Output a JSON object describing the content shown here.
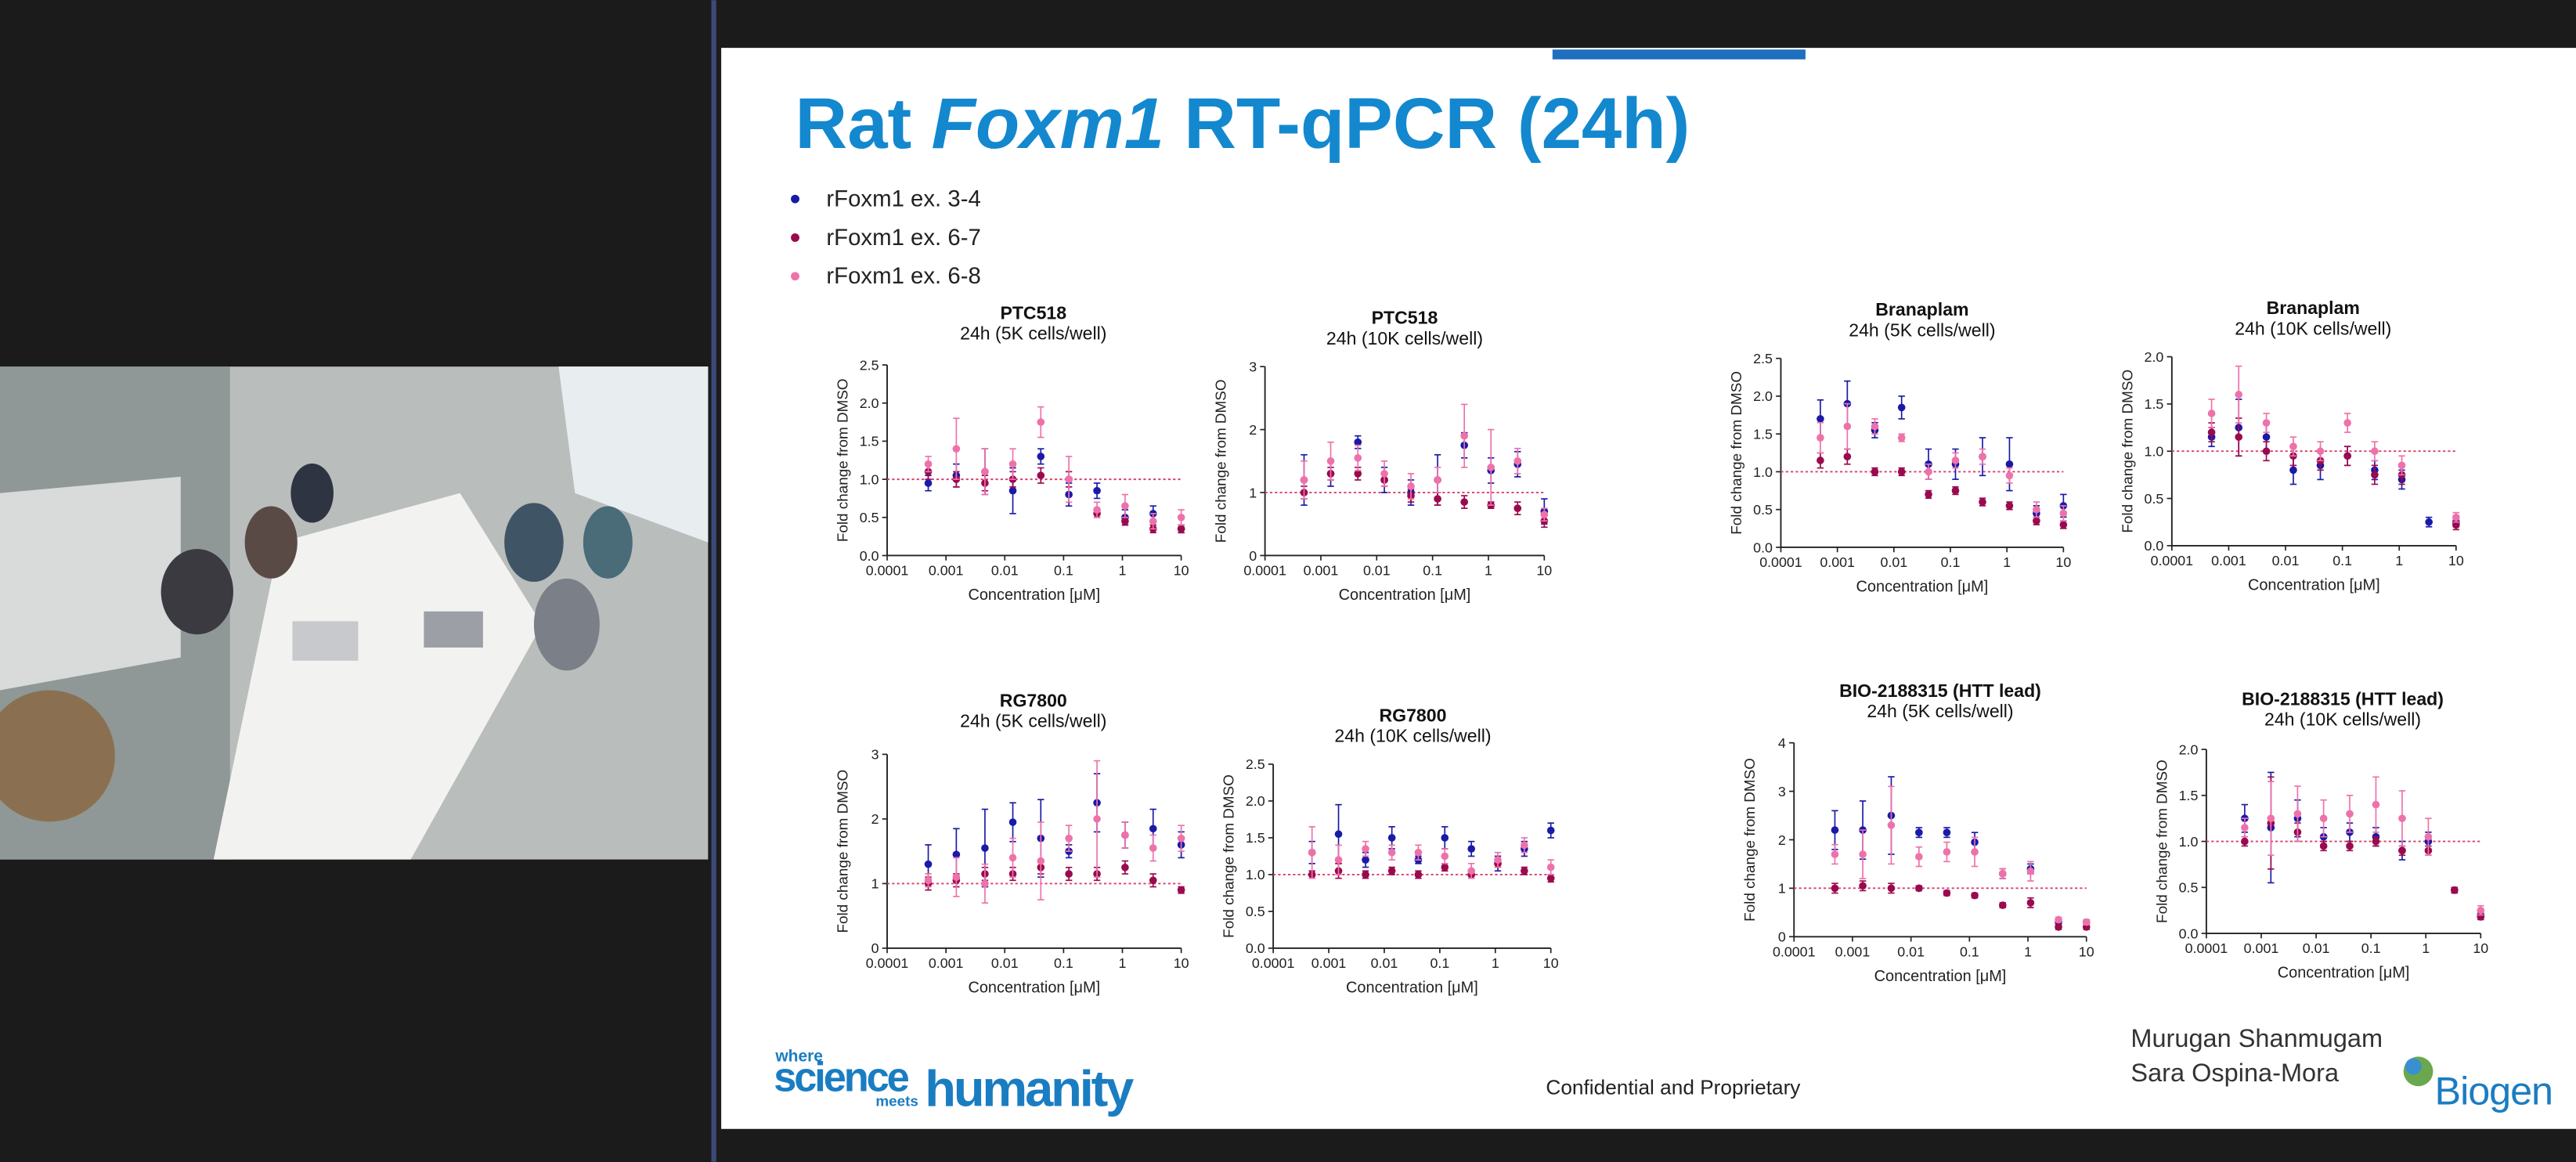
{
  "slide": {
    "title": [
      "Rat",
      "Foxm1",
      "RT-qPCR (24h)"
    ],
    "legend": [
      {
        "name": "rFoxm1 ex. 3-4",
        "color": "#1a1aa8"
      },
      {
        "name": "rFoxm1 ex. 6-7",
        "color": "#9a0a4e"
      },
      {
        "name": "rFoxm1 ex. 6-8",
        "color": "#ee72aa"
      }
    ],
    "footer": "Confidential and Proprietary",
    "authors": [
      "Murugan Shanmugam",
      "Sara Ospina-Mora"
    ],
    "logo": {
      "where": "where",
      "science": "science",
      "meets": "meets",
      "humanity": "humanity",
      "brand": "Biogen"
    }
  },
  "chart_data": [
    {
      "type": "scatter",
      "title": "PTC518",
      "subtitle": "24h (5K cells/well)",
      "xlabel": "Concentration [μM]",
      "ylabel": "Fold change from DMSO",
      "xscale": "log",
      "xlim": [
        0.0001,
        10
      ],
      "xticks": [
        0.0001,
        0.001,
        0.01,
        0.1,
        1,
        10
      ],
      "ylim": [
        0,
        2.5
      ],
      "yticks": [
        {
          "value": 0,
          "label": "0.0"
        },
        0.5,
        {
          "value": 1,
          "label": "1.0"
        },
        1.5,
        {
          "value": 2,
          "label": "2.0"
        },
        2.5
      ],
      "hline": 1,
      "x": [
        0.0005,
        0.0015,
        0.0046,
        0.0137,
        0.041,
        0.123,
        0.37,
        1.11,
        3.33,
        10
      ],
      "series": [
        {
          "values": [
            0.95,
            1.05,
            1.1,
            0.85,
            1.3,
            0.8,
            0.85,
            0.5,
            0.55,
            0.35
          ],
          "errors": [
            0.1,
            0.15,
            0.3,
            0.3,
            0.1,
            0.15,
            0.1,
            0.1,
            0.1,
            0.05
          ]
        },
        {
          "values": [
            1.1,
            1.0,
            0.95,
            1.0,
            1.05,
            1.0,
            0.55,
            0.45,
            0.35,
            0.35
          ],
          "errors": [
            0.1,
            0.1,
            0.1,
            0.1,
            0.1,
            0.1,
            0.05,
            0.05,
            0.05,
            0.05
          ]
        },
        {
          "values": [
            1.2,
            1.4,
            1.1,
            1.2,
            1.75,
            1.0,
            0.6,
            0.65,
            0.45,
            0.5
          ],
          "errors": [
            0.1,
            0.4,
            0.3,
            0.2,
            0.2,
            0.3,
            0.1,
            0.15,
            0.1,
            0.1
          ]
        }
      ]
    },
    {
      "type": "scatter",
      "title": "PTC518",
      "subtitle": "24h (10K cells/well)",
      "xlabel": "Concentration [μM]",
      "ylabel": "Fold change from DMSO",
      "xscale": "log",
      "xlim": [
        0.0001,
        10
      ],
      "xticks": [
        0.0001,
        0.001,
        0.01,
        0.1,
        1,
        10
      ],
      "ylim": [
        0,
        3
      ],
      "yticks": [
        0,
        1,
        2,
        3
      ],
      "hline": 1,
      "x": [
        0.0005,
        0.0015,
        0.0046,
        0.0137,
        0.041,
        0.123,
        0.37,
        1.11,
        3.33,
        10
      ],
      "series": [
        {
          "values": [
            1.2,
            1.3,
            1.8,
            1.2,
            1.0,
            1.2,
            1.75,
            1.35,
            1.45,
            0.7
          ],
          "errors": [
            0.4,
            0.2,
            0.1,
            0.2,
            0.2,
            0.4,
            0.2,
            0.2,
            0.2,
            0.2
          ]
        },
        {
          "values": [
            1.0,
            1.3,
            1.3,
            1.2,
            0.95,
            0.9,
            0.85,
            0.8,
            0.75,
            0.55
          ],
          "errors": [
            0.1,
            0.1,
            0.1,
            0.1,
            0.1,
            0.1,
            0.1,
            0.05,
            0.1,
            0.1
          ]
        },
        {
          "values": [
            1.2,
            1.5,
            1.55,
            1.3,
            1.1,
            1.2,
            1.9,
            1.4,
            1.5,
            0.65
          ],
          "errors": [
            0.3,
            0.3,
            0.2,
            0.2,
            0.2,
            0.2,
            0.5,
            0.6,
            0.2,
            0.1
          ]
        }
      ]
    },
    {
      "type": "scatter",
      "title": "Branaplam",
      "subtitle": "24h (5K cells/well)",
      "xlabel": "Concentration [μM]",
      "ylabel": "Fold change from DMSO",
      "xscale": "log",
      "xlim": [
        0.0001,
        10
      ],
      "xticks": [
        0.0001,
        0.001,
        0.01,
        0.1,
        1,
        10
      ],
      "ylim": [
        0,
        2.5
      ],
      "yticks": [
        {
          "value": 0,
          "label": "0.0"
        },
        0.5,
        {
          "value": 1,
          "label": "1.0"
        },
        1.5,
        {
          "value": 2,
          "label": "2.0"
        },
        2.5
      ],
      "hline": 1,
      "x": [
        0.0005,
        0.0015,
        0.0046,
        0.0137,
        0.041,
        0.123,
        0.37,
        1.11,
        3.33,
        10
      ],
      "series": [
        {
          "values": [
            1.7,
            1.9,
            1.55,
            1.85,
            1.1,
            1.1,
            1.2,
            1.1,
            0.45,
            0.55
          ],
          "errors": [
            0.25,
            0.3,
            0.1,
            0.15,
            0.2,
            0.2,
            0.25,
            0.35,
            0.1,
            0.15
          ]
        },
        {
          "values": [
            1.15,
            1.2,
            1.0,
            1.0,
            0.7,
            0.75,
            0.6,
            0.55,
            0.35,
            0.3
          ],
          "errors": [
            0.1,
            0.1,
            0.05,
            0.05,
            0.05,
            0.05,
            0.05,
            0.05,
            0.05,
            0.05
          ]
        },
        {
          "values": [
            1.45,
            1.6,
            1.6,
            1.45,
            1.0,
            1.15,
            1.2,
            0.95,
            0.5,
            0.45
          ],
          "errors": [
            0.2,
            0.3,
            0.1,
            0.05,
            0.1,
            0.1,
            0.1,
            0.1,
            0.1,
            0.1
          ]
        }
      ]
    },
    {
      "type": "scatter",
      "title": "Branaplam",
      "subtitle": "24h (10K cells/well)",
      "xlabel": "Concentration [μM]",
      "ylabel": "Fold change from DMSO",
      "xscale": "log",
      "xlim": [
        0.0001,
        10
      ],
      "xticks": [
        0.0001,
        0.001,
        0.01,
        0.1,
        1,
        10
      ],
      "ylim": [
        0,
        2
      ],
      "yticks": [
        {
          "value": 0,
          "label": "0.0"
        },
        0.5,
        {
          "value": 1,
          "label": "1.0"
        },
        1.5,
        {
          "value": 2,
          "label": "2.0"
        }
      ],
      "hline": 1,
      "x": [
        0.0005,
        0.0015,
        0.0046,
        0.0137,
        0.041,
        0.123,
        0.37,
        1.11,
        3.33,
        10
      ],
      "series": [
        {
          "values": [
            1.15,
            1.25,
            1.15,
            0.8,
            0.85,
            0.95,
            0.8,
            0.7,
            0.25,
            0.25
          ],
          "errors": [
            0.1,
            0.3,
            0.15,
            0.15,
            0.15,
            0.1,
            0.1,
            0.1,
            0.05,
            0.05
          ]
        },
        {
          "values": [
            1.2,
            1.15,
            1.0,
            0.95,
            0.9,
            0.95,
            0.75,
            0.75,
            null,
            0.22
          ],
          "errors": [
            0.1,
            0.2,
            0.1,
            0.1,
            0.1,
            0.1,
            0.1,
            0.1,
            null,
            0.05
          ]
        },
        {
          "values": [
            1.4,
            1.6,
            1.3,
            1.05,
            1.0,
            1.3,
            1.0,
            0.85,
            null,
            0.3
          ],
          "errors": [
            0.15,
            0.3,
            0.1,
            0.1,
            0.1,
            0.1,
            0.1,
            0.1,
            null,
            0.05
          ]
        }
      ]
    },
    {
      "type": "scatter",
      "title": "RG7800",
      "subtitle": "24h (5K cells/well)",
      "xlabel": "Concentration [μM]",
      "ylabel": "Fold change from DMSO",
      "xscale": "log",
      "xlim": [
        0.0001,
        10
      ],
      "xticks": [
        0.0001,
        0.001,
        0.01,
        0.1,
        1,
        10
      ],
      "ylim": [
        0,
        3
      ],
      "yticks": [
        0,
        1,
        2,
        3
      ],
      "hline": 1,
      "x": [
        0.0005,
        0.0015,
        0.0046,
        0.0137,
        0.041,
        0.123,
        0.37,
        1.11,
        3.33,
        10
      ],
      "series": [
        {
          "values": [
            1.3,
            1.45,
            1.55,
            1.95,
            1.7,
            1.5,
            2.25,
            1.75,
            1.85,
            1.6
          ],
          "errors": [
            0.3,
            0.4,
            0.6,
            0.3,
            0.6,
            0.1,
            0.45,
            0.2,
            0.3,
            0.2
          ]
        },
        {
          "values": [
            1.0,
            1.05,
            1.15,
            1.15,
            1.25,
            1.15,
            1.15,
            1.25,
            1.05,
            0.9
          ],
          "errors": [
            0.1,
            0.1,
            0.1,
            0.1,
            0.1,
            0.1,
            0.1,
            0.1,
            0.1,
            0.05
          ]
        },
        {
          "values": [
            1.05,
            1.1,
            1.0,
            1.4,
            1.35,
            1.7,
            2.0,
            1.75,
            1.55,
            1.7
          ],
          "errors": [
            0.1,
            0.3,
            0.3,
            0.3,
            0.6,
            0.2,
            0.9,
            0.2,
            0.2,
            0.2
          ]
        }
      ]
    },
    {
      "type": "scatter",
      "title": "RG7800",
      "subtitle": "24h (10K cells/well)",
      "xlabel": "Concentration [μM]",
      "ylabel": "Fold change from DMSO",
      "xscale": "log",
      "xlim": [
        0.0001,
        10
      ],
      "xticks": [
        0.0001,
        0.001,
        0.01,
        0.1,
        1,
        10
      ],
      "ylim": [
        0,
        2.5
      ],
      "yticks": [
        {
          "value": 0,
          "label": "0.0"
        },
        0.5,
        {
          "value": 1,
          "label": "1.0"
        },
        1.5,
        {
          "value": 2,
          "label": "2.0"
        },
        2.5
      ],
      "hline": 1,
      "x": [
        0.0005,
        0.0015,
        0.0046,
        0.0137,
        0.041,
        0.123,
        0.37,
        1.11,
        3.33,
        10
      ],
      "series": [
        {
          "values": [
            1.3,
            1.55,
            1.2,
            1.5,
            1.2,
            1.5,
            1.35,
            1.15,
            1.35,
            1.6
          ],
          "errors": [
            0.15,
            0.4,
            0.1,
            0.15,
            0.05,
            0.15,
            0.1,
            0.1,
            0.1,
            0.1
          ]
        },
        {
          "values": [
            1.0,
            1.05,
            1.0,
            1.05,
            1.0,
            1.1,
            1.0,
            1.15,
            1.05,
            0.95
          ],
          "errors": [
            0.05,
            0.1,
            0.05,
            0.05,
            0.05,
            0.05,
            0.05,
            0.05,
            0.05,
            0.05
          ]
        },
        {
          "values": [
            1.3,
            1.2,
            1.35,
            1.3,
            1.3,
            1.25,
            1.05,
            1.2,
            1.4,
            1.1
          ],
          "errors": [
            0.35,
            0.2,
            0.1,
            0.1,
            0.1,
            0.1,
            0.1,
            0.1,
            0.1,
            0.1
          ]
        }
      ]
    },
    {
      "type": "scatter",
      "title": "BIO-2188315 (HTT lead)",
      "subtitle": "24h (5K cells/well)",
      "xlabel": "Concentration [μM]",
      "ylabel": "Fold change from DMSO",
      "xscale": "log",
      "xlim": [
        0.0001,
        10
      ],
      "xticks": [
        0.0001,
        0.001,
        0.01,
        0.1,
        1,
        10
      ],
      "ylim": [
        0,
        4
      ],
      "yticks": [
        0,
        1,
        2,
        3,
        4
      ],
      "hline": 1,
      "x": [
        0.0005,
        0.0015,
        0.0046,
        0.0137,
        0.041,
        0.123,
        0.37,
        1.11,
        3.33,
        10
      ],
      "series": [
        {
          "values": [
            2.2,
            2.2,
            2.5,
            2.15,
            2.15,
            1.95,
            1.3,
            1.4,
            0.3,
            0.3
          ],
          "errors": [
            0.4,
            0.6,
            0.8,
            0.1,
            0.1,
            0.2,
            0.1,
            0.1,
            0.05,
            0.05
          ]
        },
        {
          "values": [
            1.0,
            1.05,
            1.0,
            1.0,
            0.9,
            0.85,
            0.65,
            0.7,
            0.2,
            0.2
          ],
          "errors": [
            0.1,
            0.1,
            0.1,
            0.05,
            0.05,
            0.05,
            0.05,
            0.1,
            0.05,
            0.05
          ]
        },
        {
          "values": [
            1.7,
            1.7,
            2.3,
            1.65,
            1.75,
            1.75,
            1.3,
            1.35,
            0.35,
            0.3
          ],
          "errors": [
            0.2,
            0.5,
            0.8,
            0.2,
            0.2,
            0.3,
            0.1,
            0.2,
            0.05,
            0.05
          ]
        }
      ]
    },
    {
      "type": "scatter",
      "title": "BIO-2188315 (HTT lead)",
      "subtitle": "24h (10K cells/well)",
      "xlabel": "Concentration [μM]",
      "ylabel": "Fold change from DMSO",
      "xscale": "log",
      "xlim": [
        0.0001,
        10
      ],
      "xticks": [
        0.0001,
        0.001,
        0.01,
        0.1,
        1,
        10
      ],
      "ylim": [
        0,
        2
      ],
      "yticks": [
        {
          "value": 0,
          "label": "0.0"
        },
        0.5,
        {
          "value": 1,
          "label": "1.0"
        },
        1.5,
        {
          "value": 2,
          "label": "2.0"
        }
      ],
      "hline": 1,
      "x": [
        0.0005,
        0.0015,
        0.0046,
        0.0137,
        0.041,
        0.123,
        0.37,
        1.11,
        3.33,
        10
      ],
      "series": [
        {
          "values": [
            1.25,
            1.15,
            1.25,
            1.05,
            1.1,
            1.05,
            0.9,
            1.0,
            0.47,
            0.2
          ],
          "errors": [
            0.15,
            0.6,
            0.2,
            0.1,
            0.1,
            0.1,
            0.1,
            0.1,
            0.03,
            0.03
          ]
        },
        {
          "values": [
            1.0,
            1.2,
            1.1,
            0.95,
            0.95,
            1.0,
            0.9,
            0.9,
            0.47,
            0.18
          ],
          "errors": [
            0.05,
            0.5,
            0.1,
            0.05,
            0.05,
            0.05,
            0.05,
            0.05,
            0.03,
            0.03
          ]
        },
        {
          "values": [
            1.15,
            1.25,
            1.3,
            1.25,
            1.3,
            1.4,
            1.25,
            1.05,
            null,
            0.25
          ],
          "errors": [
            0.1,
            0.4,
            0.3,
            0.2,
            0.2,
            0.3,
            0.3,
            0.2,
            null,
            0.05
          ]
        }
      ]
    }
  ]
}
